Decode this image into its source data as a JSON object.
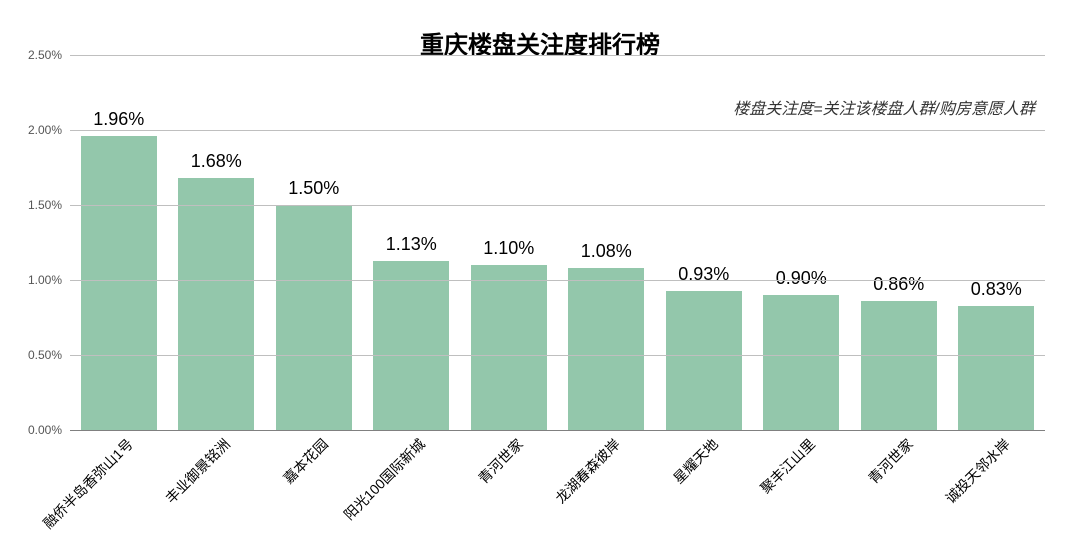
{
  "chart": {
    "type": "bar",
    "title": "重庆楼盘关注度排行榜",
    "title_fontsize": 24,
    "title_fontweight": "bold",
    "title_color": "#000000",
    "subtitle": "楼盘关注度=关注该楼盘人群/购房意愿人群",
    "subtitle_fontsize": 16,
    "subtitle_fontstyle": "italic",
    "subtitle_color": "#333333",
    "background_color": "#ffffff",
    "bar_color": "#93c7ab",
    "bar_width_ratio": 0.78,
    "grid_color": "#bfbfbf",
    "axis_color": "#808080",
    "ylim": [
      0,
      2.5
    ],
    "y_ticks": [
      0,
      0.5,
      1.0,
      1.5,
      2.0,
      2.5
    ],
    "y_tick_labels": [
      "0.00%",
      "0.50%",
      "1.00%",
      "1.50%",
      "2.00%",
      "2.50%"
    ],
    "y_label_fontsize": 12,
    "y_label_color": "#555555",
    "x_label_fontsize": 14,
    "x_label_color": "#000000",
    "x_label_rotation_deg": -45,
    "value_label_fontsize": 18,
    "value_label_color": "#000000",
    "categories": [
      "融侨半岛香弥山1号",
      "丰业御景铭洲",
      "嘉本花园",
      "阳光100国际新城",
      "青河世家",
      "龙湖春森彼岸",
      "星耀天地",
      "聚丰江山里",
      "青河世家",
      "诚投天邻水岸"
    ],
    "values": [
      1.96,
      1.68,
      1.5,
      1.13,
      1.1,
      1.08,
      0.93,
      0.9,
      0.86,
      0.83
    ],
    "value_labels": [
      "1.96%",
      "1.68%",
      "1.50%",
      "1.13%",
      "1.10%",
      "1.08%",
      "0.93%",
      "0.90%",
      "0.86%",
      "0.83%"
    ]
  }
}
